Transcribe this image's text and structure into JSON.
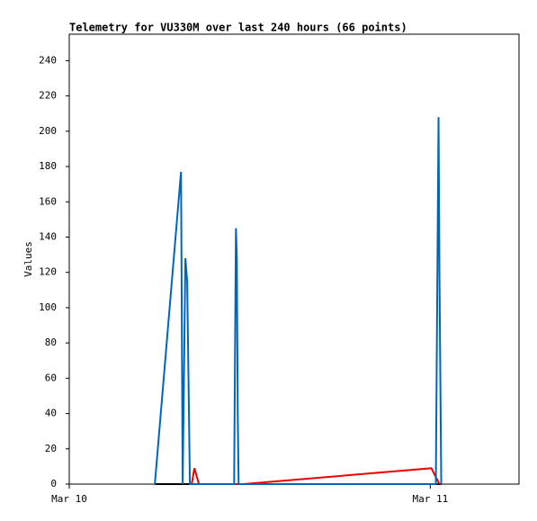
{
  "chart_data": {
    "type": "line",
    "title": "Telemetry for VU330M over last 240 hours (66 points)",
    "y_label": "Values",
    "xlim": [
      0,
      29.9
    ],
    "xticks": [
      {
        "value": 0,
        "label": "Mar 10"
      },
      {
        "value": 24,
        "label": "Mar 11"
      }
    ],
    "ylim": [
      0,
      255
    ],
    "yticks": [
      0,
      20,
      40,
      60,
      80,
      100,
      120,
      140,
      160,
      180,
      200,
      220,
      240
    ],
    "series": [
      {
        "color": "#000000",
        "x": [
          5.69,
          24.73
        ],
        "values": [
          0,
          0
        ]
      },
      {
        "color": "#ee0000",
        "x": [
          8.14,
          8.32,
          8.62,
          11.56,
          24.07,
          24.61
        ],
        "values": [
          0,
          9,
          0,
          0,
          9,
          0
        ]
      },
      {
        "color": "#0066bb",
        "x": [
          5.69,
          7.43,
          7.54,
          7.72,
          7.84,
          8.02,
          10.96,
          11.08,
          11.14,
          11.2,
          11.26,
          24.37,
          24.55,
          24.61,
          24.73
        ],
        "values": [
          0,
          177,
          0,
          128,
          115,
          0,
          0,
          145,
          128,
          40,
          0,
          0,
          208,
          120,
          0
        ]
      }
    ]
  }
}
